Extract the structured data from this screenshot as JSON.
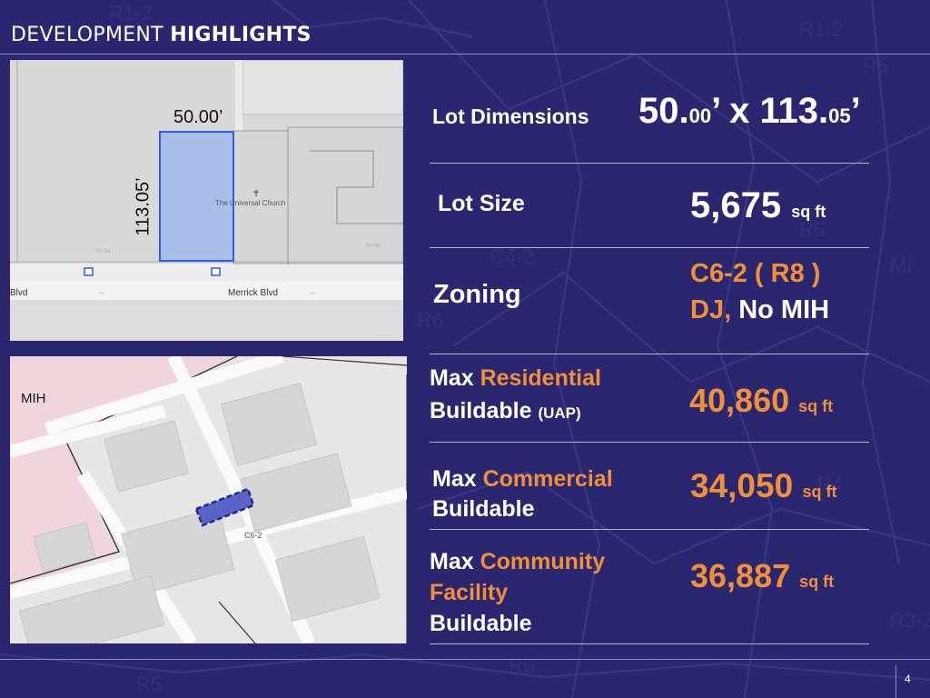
{
  "header": {
    "title_light": "DEVELOPMENT",
    "title_bold": "HIGHLIGHTS"
  },
  "lot_map": {
    "width_label": "50.00’",
    "depth_label": "113.05’",
    "church_label": "The Universal Church",
    "street_left": "Blvd",
    "street_right": "Merrick Blvd"
  },
  "zoning_map": {
    "mih_label": "MIH",
    "zone_label": "C6-2"
  },
  "highlights": {
    "lot_dimensions": {
      "label": "Lot Dimensions",
      "width_int": "50.",
      "width_dec": "00",
      "sep": "’ x ",
      "depth_int": "113.",
      "depth_dec": "05",
      "end": "’"
    },
    "lot_size": {
      "label": "Lot Size",
      "value": "5,675",
      "unit": "sq ft"
    },
    "zoning": {
      "label": "Zoning",
      "line1": "C6-2 ( R8 )",
      "line2_a": "DJ,",
      "line2_b": " No MIH"
    },
    "max_residential": {
      "label_max": "Max ",
      "label_key": "Residential",
      "label_line2": "Buildable ",
      "label_note": "(UAP)",
      "value": "40,860",
      "unit": "sq ft"
    },
    "max_commercial": {
      "label_max": "Max ",
      "label_key": "Commercial",
      "label_line2": "Buildable",
      "value": "34,050",
      "unit": "sq ft"
    },
    "max_community": {
      "label_max": "Max ",
      "label_key1": "Community",
      "label_key2": "Facility",
      "label_line3": "Buildable",
      "value": "36,887",
      "unit": "sq ft"
    }
  },
  "footer": {
    "page_number": "4"
  },
  "colors": {
    "background": "#2a2770",
    "accent": "#f0903a",
    "lot_highlight": "#8ea6e8"
  }
}
